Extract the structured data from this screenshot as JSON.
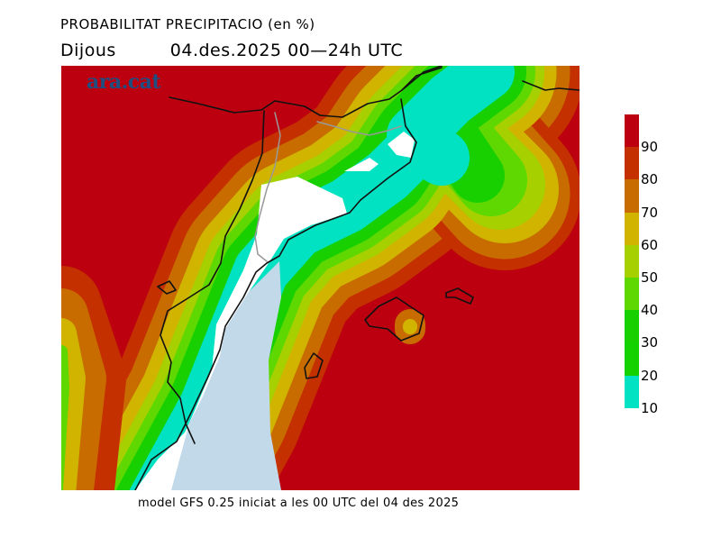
{
  "header": {
    "title": "PROBABILITAT PRECIPITACIO (en %)",
    "day": "Dijous",
    "date_range": "04.des.2025 00—24h UTC"
  },
  "logo": "ara.cat",
  "footer": "model GFS 0.25 iniciat a les 00 UTC del 04 des 2025",
  "legend": {
    "labels": [
      "90",
      "80",
      "70",
      "60",
      "50",
      "40",
      "30",
      "20",
      "10"
    ],
    "colors": [
      "#bc0010",
      "#c43000",
      "#c86c00",
      "#d0b400",
      "#a6d000",
      "#5ed800",
      "#18d000",
      "#14d200",
      "#00e2c2"
    ]
  }
}
